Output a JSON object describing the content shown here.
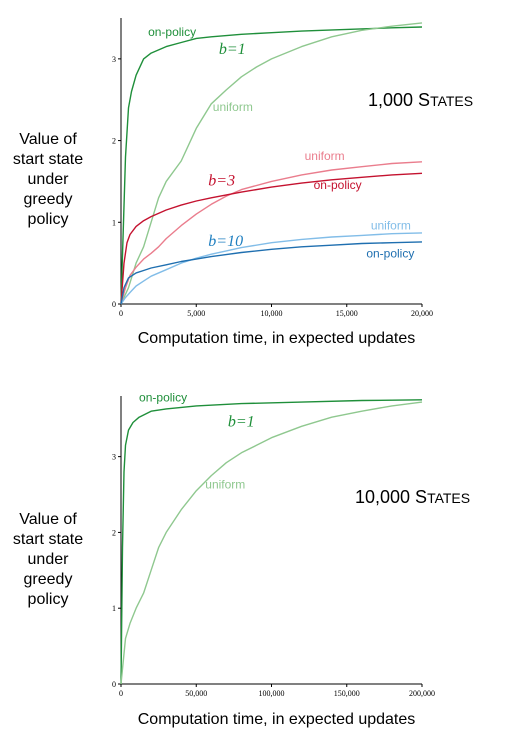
{
  "chart_data": [
    {
      "type": "line",
      "ylabel": [
        "Value of",
        "start state",
        "under",
        "greedy",
        "policy"
      ],
      "xlabel": "Computation time, in expected updates",
      "annotation": {
        "big": "1,000 S",
        "small": "TATES"
      },
      "xlim": [
        0,
        20000
      ],
      "ylim": [
        0,
        3.5
      ],
      "xticks": [
        {
          "value": 0,
          "label": "0"
        },
        {
          "value": 5000,
          "label": "5,000"
        },
        {
          "value": 10000,
          "label": "10,000"
        },
        {
          "value": 15000,
          "label": "15,000"
        },
        {
          "value": 20000,
          "label": "20,000"
        }
      ],
      "yticks": [
        {
          "value": 0,
          "label": "0"
        },
        {
          "value": 1,
          "label": "1"
        },
        {
          "value": 2,
          "label": "2"
        },
        {
          "value": 3,
          "label": "3"
        }
      ],
      "groups": [
        {
          "b_label": "b=1",
          "b_color": "#1f8f3a",
          "b_at": [
            6500,
            3.06
          ]
        },
        {
          "b_label": "b=3",
          "b_color": "#c4122f",
          "b_at": [
            5800,
            1.45
          ]
        },
        {
          "b_label": "b=10",
          "b_color": "#1f7fc0",
          "b_at": [
            5800,
            0.71
          ]
        }
      ],
      "series": [
        {
          "name": "on-policy",
          "color": "#1f8f3a",
          "label_at": [
            1800,
            3.28
          ],
          "x": [
            0,
            300,
            500,
            700,
            1000,
            1500,
            2000,
            3000,
            4000,
            5000,
            6000,
            8000,
            10000,
            12000,
            15000,
            18000,
            20000
          ],
          "y": [
            0,
            1.8,
            2.4,
            2.6,
            2.8,
            3.0,
            3.07,
            3.15,
            3.2,
            3.25,
            3.27,
            3.3,
            3.32,
            3.34,
            3.36,
            3.38,
            3.39
          ]
        },
        {
          "name": "uniform",
          "color": "#8fc88f",
          "label_at": [
            6100,
            2.36
          ],
          "x": [
            0,
            500,
            1000,
            1500,
            2000,
            2500,
            3000,
            4000,
            5000,
            6000,
            7000,
            8000,
            9000,
            10000,
            12000,
            14000,
            16000,
            18000,
            20000
          ],
          "y": [
            0,
            0.2,
            0.5,
            0.7,
            1.0,
            1.3,
            1.5,
            1.75,
            2.15,
            2.45,
            2.62,
            2.78,
            2.9,
            3.0,
            3.15,
            3.27,
            3.35,
            3.4,
            3.44
          ]
        },
        {
          "name": "uniform",
          "color": "#ea7d8d",
          "label_at": [
            12200,
            1.76
          ],
          "x": [
            0,
            300,
            600,
            1000,
            1500,
            2000,
            2500,
            3000,
            4000,
            5000,
            6000,
            7000,
            8000,
            10000,
            12000,
            14000,
            16000,
            18000,
            20000
          ],
          "y": [
            0,
            0.2,
            0.35,
            0.45,
            0.55,
            0.62,
            0.7,
            0.8,
            0.96,
            1.1,
            1.22,
            1.32,
            1.4,
            1.5,
            1.58,
            1.64,
            1.68,
            1.72,
            1.74
          ]
        },
        {
          "name": "on-policy",
          "color": "#c4122f",
          "label_at": [
            12800,
            1.41
          ],
          "x": [
            0,
            200,
            400,
            600,
            1000,
            1500,
            2000,
            3000,
            4000,
            5000,
            6000,
            8000,
            10000,
            12000,
            14000,
            16000,
            18000,
            20000
          ],
          "y": [
            0,
            0.5,
            0.75,
            0.85,
            0.95,
            1.02,
            1.07,
            1.15,
            1.21,
            1.26,
            1.3,
            1.37,
            1.43,
            1.48,
            1.52,
            1.55,
            1.58,
            1.6
          ]
        },
        {
          "name": "uniform",
          "color": "#82bde8",
          "label_at": [
            16600,
            0.91
          ],
          "x": [
            0,
            300,
            700,
            1000,
            1500,
            2000,
            3000,
            4000,
            5000,
            6000,
            7000,
            8000,
            10000,
            12000,
            14000,
            16000,
            18000,
            20000
          ],
          "y": [
            0,
            0.08,
            0.16,
            0.22,
            0.28,
            0.34,
            0.42,
            0.5,
            0.56,
            0.61,
            0.65,
            0.69,
            0.75,
            0.79,
            0.82,
            0.84,
            0.86,
            0.87
          ]
        },
        {
          "name": "on-policy",
          "color": "#1f6fb0",
          "label_at": [
            16300,
            0.57
          ],
          "x": [
            0,
            200,
            500,
            1000,
            1500,
            2000,
            3000,
            4000,
            5000,
            6000,
            8000,
            10000,
            12000,
            14000,
            16000,
            18000,
            20000
          ],
          "y": [
            0,
            0.2,
            0.32,
            0.38,
            0.41,
            0.44,
            0.48,
            0.52,
            0.55,
            0.58,
            0.63,
            0.67,
            0.7,
            0.72,
            0.74,
            0.75,
            0.76
          ]
        }
      ]
    },
    {
      "type": "line",
      "ylabel": [
        "Value of",
        "start state",
        "under",
        "greedy",
        "policy"
      ],
      "xlabel": "Computation time, in expected updates",
      "annotation": {
        "big": "10,000 S",
        "small": "TATES"
      },
      "xlim": [
        0,
        200000
      ],
      "ylim": [
        0,
        3.8
      ],
      "xticks": [
        {
          "value": 0,
          "label": "0"
        },
        {
          "value": 50000,
          "label": "50,000"
        },
        {
          "value": 100000,
          "label": "100,000"
        },
        {
          "value": 150000,
          "label": "150,000"
        },
        {
          "value": 200000,
          "label": "200,000"
        }
      ],
      "yticks": [
        {
          "value": 0,
          "label": "0"
        },
        {
          "value": 1,
          "label": "1"
        },
        {
          "value": 2,
          "label": "2"
        },
        {
          "value": 3,
          "label": "3"
        }
      ],
      "groups": [
        {
          "b_label": "b=1",
          "b_color": "#1f8f3a",
          "b_at": [
            71000,
            3.4
          ]
        }
      ],
      "series": [
        {
          "name": "on-policy",
          "color": "#1f8f3a",
          "label_at": [
            12000,
            3.73
          ],
          "x": [
            0,
            1000,
            2000,
            3000,
            5000,
            8000,
            12000,
            20000,
            30000,
            50000,
            80000,
            120000,
            160000,
            200000
          ],
          "y": [
            0,
            1.8,
            2.8,
            3.15,
            3.35,
            3.45,
            3.52,
            3.6,
            3.63,
            3.67,
            3.7,
            3.72,
            3.74,
            3.75
          ]
        },
        {
          "name": "uniform",
          "color": "#8fc88f",
          "label_at": [
            56000,
            2.58
          ],
          "x": [
            0,
            3000,
            6000,
            10000,
            15000,
            20000,
            25000,
            30000,
            40000,
            50000,
            60000,
            70000,
            80000,
            90000,
            100000,
            120000,
            140000,
            160000,
            180000,
            200000
          ],
          "y": [
            0,
            0.6,
            0.8,
            1.0,
            1.2,
            1.5,
            1.8,
            2.0,
            2.3,
            2.55,
            2.75,
            2.92,
            3.05,
            3.15,
            3.25,
            3.4,
            3.52,
            3.6,
            3.67,
            3.72
          ]
        }
      ]
    }
  ]
}
